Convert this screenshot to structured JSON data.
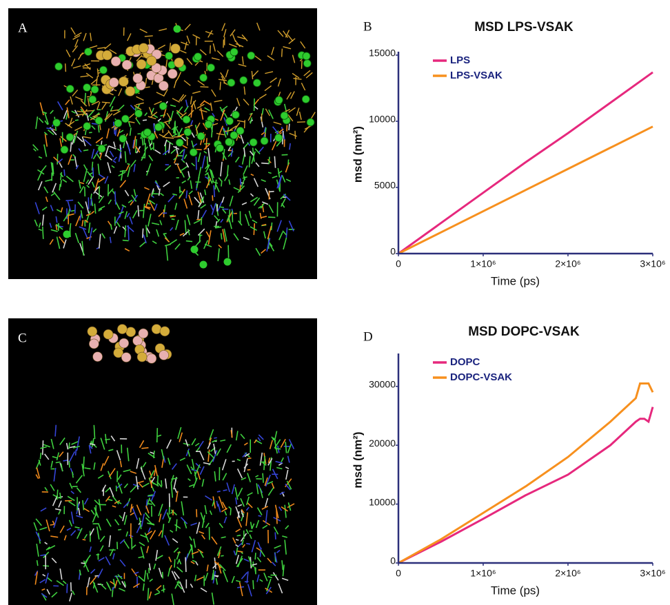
{
  "chart_data": [
    {
      "type": "image",
      "panel": "A"
    },
    {
      "type": "line",
      "panel": "B",
      "title": "MSD LPS-VSAK",
      "xlabel": "Time (ps)",
      "ylabel": "msd (nm²)",
      "x": [
        0,
        500000,
        1000000,
        1500000,
        2000000,
        2500000,
        3000000
      ],
      "series": [
        {
          "name": "LPS",
          "color": "#e6287d",
          "values": [
            0,
            2300,
            4600,
            6900,
            9100,
            11400,
            13700
          ]
        },
        {
          "name": "LPS-VSAK",
          "color": "#f7901e",
          "values": [
            0,
            1600,
            3200,
            4800,
            6400,
            8000,
            9600
          ]
        }
      ],
      "xlim": [
        0,
        3000000
      ],
      "ylim": [
        0,
        15000
      ],
      "xticks": [
        0,
        {
          "value": 1000000,
          "label": "1×10⁶"
        },
        {
          "value": 2000000,
          "label": "2×10⁶"
        },
        {
          "value": 3000000,
          "label": "3×10⁶"
        }
      ],
      "yticks": [
        0,
        5000,
        10000,
        15000
      ],
      "legend": "upper left"
    },
    {
      "type": "image",
      "panel": "C"
    },
    {
      "type": "line",
      "panel": "D",
      "title": "MSD DOPC-VSAK",
      "xlabel": "Time (ps)",
      "ylabel": "msd (nm²)",
      "x": [
        0,
        500000,
        1000000,
        1500000,
        2000000,
        2500000,
        2800000,
        2850000,
        2900000,
        2950000,
        3000000
      ],
      "series": [
        {
          "name": "DOPC",
          "color": "#e6287d",
          "values": [
            0,
            3600,
            7500,
            11500,
            15000,
            20000,
            24000,
            24500,
            24500,
            24000,
            26500
          ]
        },
        {
          "name": "DOPC-VSAK",
          "color": "#f7901e",
          "values": [
            0,
            4000,
            8500,
            13000,
            18000,
            24000,
            28000,
            30500,
            30500,
            30500,
            29000
          ]
        }
      ],
      "xlim": [
        0,
        3000000
      ],
      "ylim": [
        0,
        35000
      ],
      "xticks": [
        0,
        {
          "value": 1000000,
          "label": "1×10⁶"
        },
        {
          "value": 2000000,
          "label": "2×10⁶"
        },
        {
          "value": 3000000,
          "label": "3×10⁶"
        }
      ],
      "yticks": [
        0,
        10000,
        20000,
        30000
      ],
      "legend": "upper left"
    }
  ]
}
